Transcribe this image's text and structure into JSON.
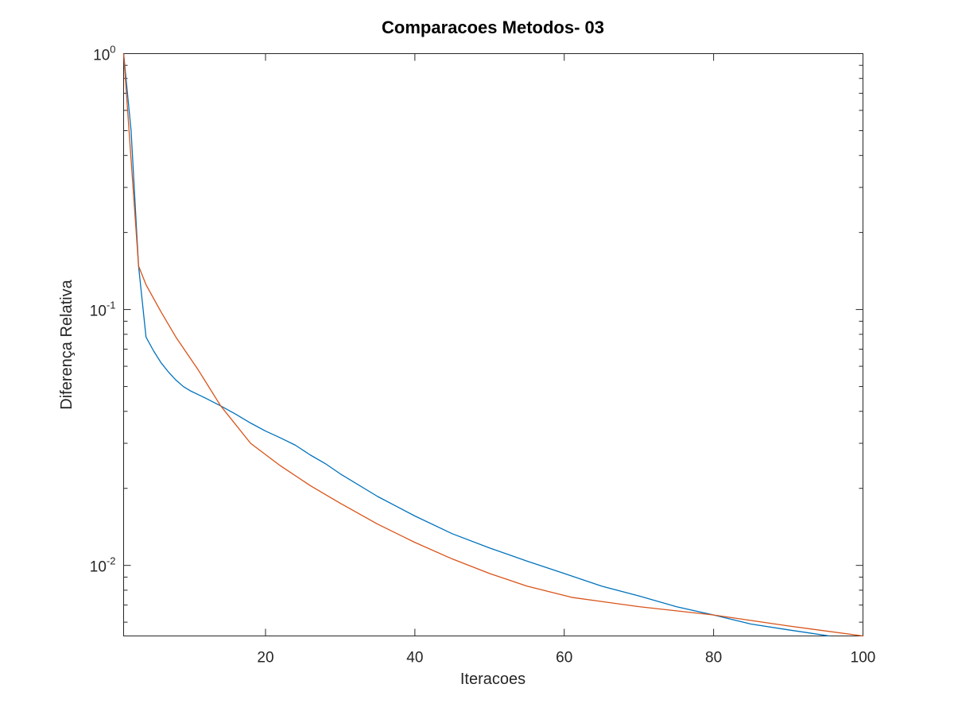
{
  "chart_data": {
    "type": "line",
    "title": "Comparacoes Metodos- 03",
    "xlabel": "Iteracoes",
    "ylabel": "Diferença Relativa",
    "xlim": [
      1,
      100
    ],
    "ylim": [
      0.0053,
      1
    ],
    "yscale": "log",
    "grid": false,
    "x_ticks": [
      {
        "value": 20,
        "label": "20"
      },
      {
        "value": 40,
        "label": "40"
      },
      {
        "value": 60,
        "label": "60"
      },
      {
        "value": 80,
        "label": "80"
      },
      {
        "value": 100,
        "label": "100"
      }
    ],
    "y_ticks": [
      {
        "value": 1,
        "base": "10",
        "exponent": "0"
      },
      {
        "value": 0.1,
        "base": "10",
        "exponent": "-1"
      },
      {
        "value": 0.01,
        "base": "10",
        "exponent": "-2"
      }
    ],
    "series": [
      {
        "color": "#0072BD",
        "x": [
          1,
          2,
          3,
          4,
          5,
          6,
          7,
          8,
          9,
          10,
          12,
          14,
          16,
          18,
          20,
          22,
          24,
          26,
          28,
          30,
          35,
          40,
          45,
          50,
          55,
          60,
          65,
          70,
          75,
          80,
          85,
          90,
          95.5
        ],
        "y": [
          1.0,
          0.5,
          0.148,
          0.078,
          0.069,
          0.062,
          0.057,
          0.053,
          0.05,
          0.048,
          0.045,
          0.042,
          0.039,
          0.036,
          0.0335,
          0.0315,
          0.0295,
          0.027,
          0.025,
          0.0228,
          0.0186,
          0.0156,
          0.0133,
          0.0117,
          0.0104,
          0.0093,
          0.0083,
          0.0076,
          0.0069,
          0.0064,
          0.0059,
          0.0056,
          0.0053
        ]
      },
      {
        "color": "#D95319",
        "x": [
          1,
          3,
          4,
          6,
          8,
          11,
          14,
          18,
          22,
          26,
          30,
          35,
          40,
          45,
          50,
          55,
          61,
          70,
          80,
          90,
          100
        ],
        "y": [
          1.0,
          0.148,
          0.125,
          0.098,
          0.078,
          0.058,
          0.042,
          0.03,
          0.0245,
          0.0205,
          0.0175,
          0.0145,
          0.0123,
          0.0106,
          0.0093,
          0.0083,
          0.0075,
          0.0069,
          0.0064,
          0.0058,
          0.0053
        ]
      }
    ]
  }
}
